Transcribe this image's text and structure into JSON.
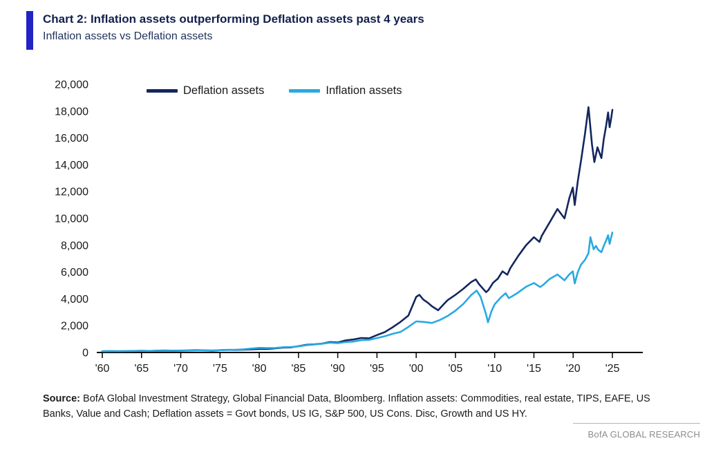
{
  "header": {
    "title": "Chart 2: Inflation assets outperforming Deflation assets past 4 years",
    "subtitle": "Inflation assets vs Deflation assets"
  },
  "colors": {
    "accent_bar": "#2123c4",
    "title_text": "#121f4d",
    "subtitle_text": "#22335f",
    "axis": "#000000",
    "brand_text": "#8c8c8c"
  },
  "chart_data": {
    "type": "line",
    "title": "Inflation assets vs Deflation assets",
    "xlabel": "",
    "ylabel": "",
    "grid": false,
    "legend_position": "top-left-inside",
    "xlim": [
      1960,
      2025
    ],
    "ylim": [
      0,
      20000
    ],
    "x_ticks": [
      1960,
      1965,
      1970,
      1975,
      1980,
      1985,
      1990,
      1995,
      2000,
      2005,
      2010,
      2015,
      2020,
      2025
    ],
    "x_tick_labels": [
      "'60",
      "'65",
      "'70",
      "'75",
      "'80",
      "'85",
      "'90",
      "'95",
      "'00",
      "'05",
      "'10",
      "'15",
      "'20",
      "'25"
    ],
    "y_ticks": [
      0,
      2000,
      4000,
      6000,
      8000,
      10000,
      12000,
      14000,
      16000,
      18000,
      20000
    ],
    "y_tick_labels": [
      "0",
      "2,000",
      "4,000",
      "6,000",
      "8,000",
      "10,000",
      "12,000",
      "14,000",
      "16,000",
      "18,000",
      "20,000"
    ],
    "series": [
      {
        "name": "Deflation assets",
        "color": "#13265e",
        "points": [
          [
            1960,
            95
          ],
          [
            1961,
            100
          ],
          [
            1962,
            95
          ],
          [
            1963,
            105
          ],
          [
            1964,
            115
          ],
          [
            1965,
            122
          ],
          [
            1966,
            115
          ],
          [
            1967,
            132
          ],
          [
            1968,
            145
          ],
          [
            1969,
            132
          ],
          [
            1970,
            138
          ],
          [
            1971,
            152
          ],
          [
            1972,
            170
          ],
          [
            1973,
            158
          ],
          [
            1974,
            135
          ],
          [
            1975,
            168
          ],
          [
            1976,
            195
          ],
          [
            1977,
            193
          ],
          [
            1978,
            208
          ],
          [
            1979,
            230
          ],
          [
            1980,
            262
          ],
          [
            1981,
            258
          ],
          [
            1982,
            305
          ],
          [
            1983,
            360
          ],
          [
            1984,
            378
          ],
          [
            1985,
            470
          ],
          [
            1986,
            570
          ],
          [
            1987,
            610
          ],
          [
            1988,
            660
          ],
          [
            1989,
            780
          ],
          [
            1990,
            740
          ],
          [
            1991,
            900
          ],
          [
            1992,
            970
          ],
          [
            1993,
            1080
          ],
          [
            1994,
            1050
          ],
          [
            1995,
            1300
          ],
          [
            1996,
            1520
          ],
          [
            1997,
            1880
          ],
          [
            1998,
            2280
          ],
          [
            1999,
            2750
          ],
          [
            2000,
            4150
          ],
          [
            2000.4,
            4300
          ],
          [
            2000.9,
            3950
          ],
          [
            2001.5,
            3700
          ],
          [
            2002,
            3450
          ],
          [
            2002.8,
            3150
          ],
          [
            2003.5,
            3600
          ],
          [
            2004,
            3900
          ],
          [
            2005,
            4300
          ],
          [
            2006,
            4750
          ],
          [
            2007,
            5250
          ],
          [
            2007.6,
            5450
          ],
          [
            2008,
            5100
          ],
          [
            2008.9,
            4500
          ],
          [
            2009.2,
            4650
          ],
          [
            2009.8,
            5200
          ],
          [
            2010.4,
            5500
          ],
          [
            2011,
            6050
          ],
          [
            2011.6,
            5800
          ],
          [
            2012,
            6300
          ],
          [
            2013,
            7200
          ],
          [
            2014,
            8000
          ],
          [
            2015,
            8600
          ],
          [
            2015.7,
            8250
          ],
          [
            2016,
            8700
          ],
          [
            2017,
            9700
          ],
          [
            2018,
            10700
          ],
          [
            2018.9,
            10000
          ],
          [
            2019.5,
            11500
          ],
          [
            2019.95,
            12300
          ],
          [
            2020.2,
            11000
          ],
          [
            2020.6,
            12800
          ],
          [
            2021,
            14300
          ],
          [
            2021.5,
            16300
          ],
          [
            2021.95,
            18300
          ],
          [
            2022.4,
            15500
          ],
          [
            2022.7,
            14200
          ],
          [
            2023.1,
            15300
          ],
          [
            2023.6,
            14500
          ],
          [
            2023.9,
            15900
          ],
          [
            2024.2,
            16900
          ],
          [
            2024.45,
            17900
          ],
          [
            2024.65,
            16800
          ],
          [
            2024.85,
            17500
          ],
          [
            2025,
            18100
          ]
        ]
      },
      {
        "name": "Inflation assets",
        "color": "#29a9e1",
        "points": [
          [
            1960,
            90
          ],
          [
            1961,
            95
          ],
          [
            1962,
            92
          ],
          [
            1963,
            100
          ],
          [
            1964,
            108
          ],
          [
            1965,
            112
          ],
          [
            1966,
            108
          ],
          [
            1967,
            118
          ],
          [
            1968,
            128
          ],
          [
            1969,
            122
          ],
          [
            1970,
            128
          ],
          [
            1971,
            140
          ],
          [
            1972,
            155
          ],
          [
            1973,
            162
          ],
          [
            1974,
            148
          ],
          [
            1975,
            172
          ],
          [
            1976,
            192
          ],
          [
            1977,
            205
          ],
          [
            1978,
            235
          ],
          [
            1979,
            295
          ],
          [
            1980,
            345
          ],
          [
            1981,
            330
          ],
          [
            1982,
            335
          ],
          [
            1983,
            390
          ],
          [
            1984,
            400
          ],
          [
            1985,
            455
          ],
          [
            1986,
            540
          ],
          [
            1987,
            600
          ],
          [
            1988,
            655
          ],
          [
            1989,
            730
          ],
          [
            1990,
            695
          ],
          [
            1991,
            775
          ],
          [
            1992,
            815
          ],
          [
            1993,
            920
          ],
          [
            1994,
            945
          ],
          [
            1995,
            1075
          ],
          [
            1996,
            1210
          ],
          [
            1997,
            1390
          ],
          [
            1998,
            1530
          ],
          [
            1999,
            1900
          ],
          [
            2000,
            2320
          ],
          [
            2001,
            2280
          ],
          [
            2002,
            2200
          ],
          [
            2003,
            2420
          ],
          [
            2004,
            2720
          ],
          [
            2005,
            3120
          ],
          [
            2006,
            3620
          ],
          [
            2007,
            4280
          ],
          [
            2007.7,
            4620
          ],
          [
            2008.2,
            4150
          ],
          [
            2008.9,
            2850
          ],
          [
            2009.15,
            2250
          ],
          [
            2009.6,
            3100
          ],
          [
            2010,
            3600
          ],
          [
            2010.8,
            4120
          ],
          [
            2011.4,
            4420
          ],
          [
            2011.8,
            4050
          ],
          [
            2012.2,
            4180
          ],
          [
            2013,
            4480
          ],
          [
            2014,
            4900
          ],
          [
            2015,
            5180
          ],
          [
            2015.8,
            4880
          ],
          [
            2016.2,
            5050
          ],
          [
            2017,
            5480
          ],
          [
            2018,
            5820
          ],
          [
            2018.9,
            5380
          ],
          [
            2019.5,
            5820
          ],
          [
            2019.95,
            6050
          ],
          [
            2020.2,
            5150
          ],
          [
            2020.6,
            6000
          ],
          [
            2021,
            6550
          ],
          [
            2021.5,
            6900
          ],
          [
            2021.95,
            7400
          ],
          [
            2022.2,
            8600
          ],
          [
            2022.6,
            7700
          ],
          [
            2022.9,
            7950
          ],
          [
            2023.2,
            7650
          ],
          [
            2023.6,
            7480
          ],
          [
            2023.9,
            7950
          ],
          [
            2024.2,
            8350
          ],
          [
            2024.45,
            8750
          ],
          [
            2024.65,
            8100
          ],
          [
            2024.85,
            8600
          ],
          [
            2025,
            8950
          ]
        ]
      }
    ]
  },
  "footer": {
    "source_label": "Source:",
    "source_text": " BofA Global Investment Strategy, Global Financial Data, Bloomberg. Inflation assets: Commodities, real estate, TIPS, EAFE, US Banks, Value and Cash; Deflation assets = Govt bonds, US IG, S&P 500, US Cons. Disc, Growth and US HY.",
    "brand": "BofA GLOBAL RESEARCH"
  }
}
